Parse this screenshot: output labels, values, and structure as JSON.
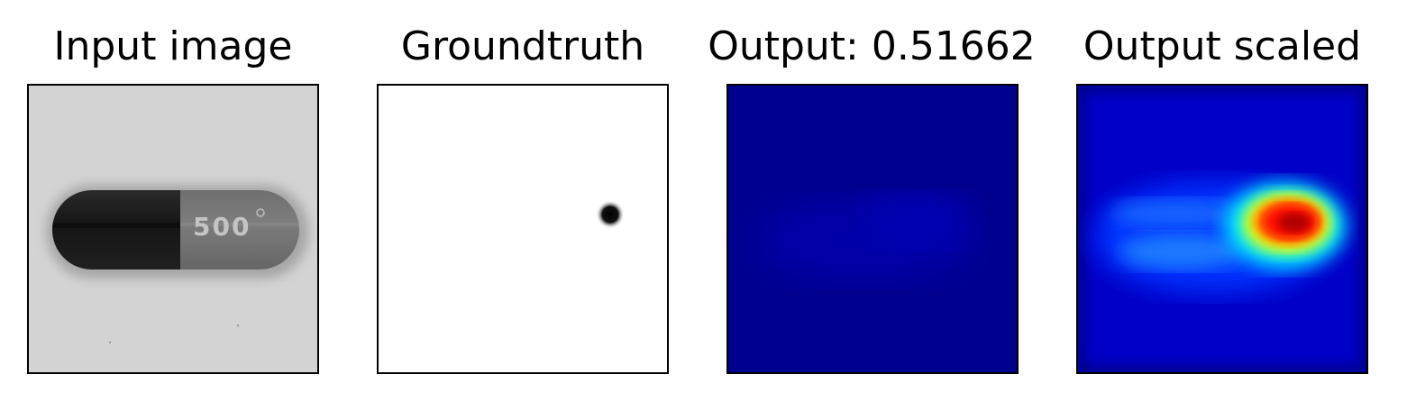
{
  "panels": [
    {
      "title": "Input image",
      "content": "grayscale capsule photo with printed text",
      "printed_text": "500"
    },
    {
      "title": "Groundtruth",
      "content": "white mask with small dark defect spot"
    },
    {
      "title": "Output: 0.51662",
      "content": "low-intensity jet colormap heatmap"
    },
    {
      "title": "Output scaled",
      "content": "jet colormap heatmap, hotspot at defect location"
    }
  ],
  "colors": {
    "heatmap_low": "#00008f",
    "heatmap_high": "#b00000"
  }
}
